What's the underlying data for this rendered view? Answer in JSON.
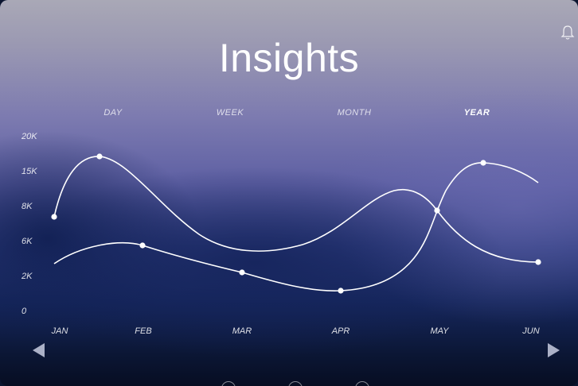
{
  "title": "Insights",
  "periods": [
    "DAY",
    "WEEK",
    "MONTH",
    "YEAR"
  ],
  "active_period": "YEAR",
  "icons": {
    "notification": "bell-icon",
    "previous": "triangle-left-icon",
    "next": "triangle-right-icon"
  },
  "colors": {
    "line": "#ffffff",
    "background_top": "#a9a8b6",
    "background_bottom": "#070d22"
  },
  "chart_data": {
    "type": "line",
    "categories": [
      "JAN",
      "FEB",
      "MAR",
      "APR",
      "MAY",
      "JUN"
    ],
    "y_ticks": [
      "0",
      "2K",
      "6K",
      "8K",
      "15K",
      "20K"
    ],
    "series": [
      {
        "points": [
          {
            "x": "JAN",
            "y": "8K"
          },
          {
            "x": "JAN-FEB",
            "y": "17K"
          },
          {
            "x": "MAY",
            "y": "8K"
          },
          {
            "x": "JUN",
            "y": "4K"
          }
        ],
        "curve_through": [
          "JAN: 8K",
          "peak ~17K between JAN and FEB",
          "trough ~5K near MAR-APR",
          "~9.5K between APR and MAY",
          "8K at MAY",
          "4K at JUN"
        ]
      },
      {
        "points": [
          {
            "x": "FEB",
            "y": "5.5K"
          },
          {
            "x": "MAR",
            "y": "3.5K"
          },
          {
            "x": "APR",
            "y": "1.5K"
          },
          {
            "x": "MAY-JUN",
            "y": "16K"
          }
        ],
        "curve_through": [
          "JAN: ~4K",
          "FEB: 5.5K",
          "MAR: 3.5K",
          "APR: 1.5K",
          "MAY: 8K",
          "peak 16K between MAY and JUN",
          "JUN: ~14K"
        ]
      }
    ],
    "grid": false,
    "legend": "none"
  }
}
